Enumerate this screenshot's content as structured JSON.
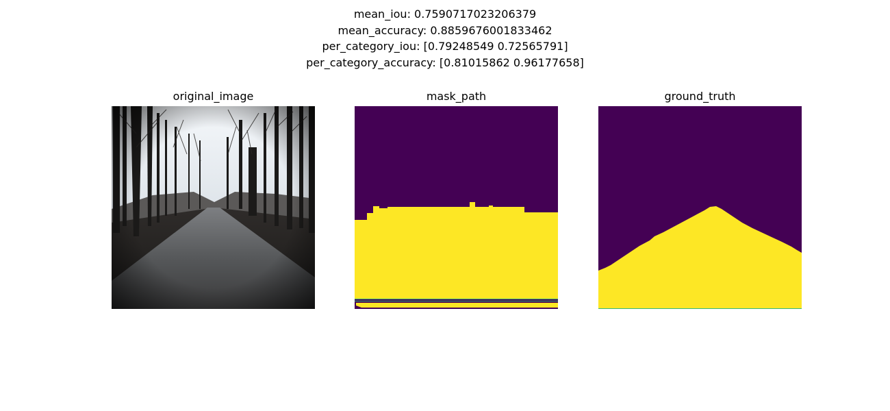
{
  "figure": {
    "title_lines": [
      "mean_iou: 0.7590717023206379",
      "mean_accuracy: 0.8859676001833462",
      "per_category_iou: [0.79248549 0.72565791]",
      "per_category_accuracy: [0.81015862 0.96177658]"
    ]
  },
  "panels": [
    {
      "title": "original_image"
    },
    {
      "title": "mask_path"
    },
    {
      "title": "ground_truth"
    }
  ],
  "colors": {
    "mask_background": "#440154",
    "mask_foreground": "#fde725",
    "mask_edge": "#35b779",
    "sky": "#e8eef3",
    "tree_dark": "#1e1c1a",
    "road": "#4a4a4a"
  }
}
